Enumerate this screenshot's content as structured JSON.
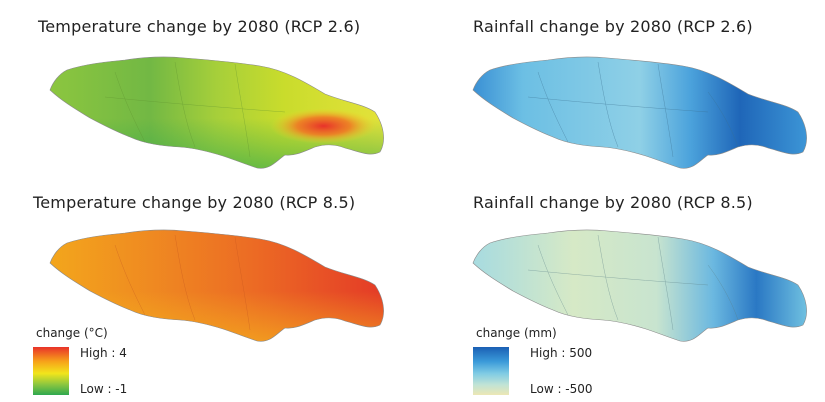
{
  "panels": [
    {
      "title": "Temperature change by 2080 (RCP 2.6)"
    },
    {
      "title": "Rainfall change by 2080 (RCP 2.6)"
    },
    {
      "title": "Temperature change by 2080 (RCP 8.5)"
    },
    {
      "title": "Rainfall change by 2080 (RCP 8.5)"
    }
  ],
  "legends": {
    "temperature": {
      "title": "change (°C)",
      "high_label": "High : 4",
      "low_label": "Low : -1",
      "colors": [
        "#e8322a",
        "#f7a21a",
        "#f2e51c",
        "#8cc63f",
        "#2fa84f"
      ]
    },
    "rainfall": {
      "title": "change (mm)",
      "high_label": "High : 500",
      "low_label": "Low : -500",
      "colors": [
        "#1b5fb4",
        "#3a9ad9",
        "#7fcbe4",
        "#bfe3d6",
        "#ece7b4"
      ]
    }
  }
}
